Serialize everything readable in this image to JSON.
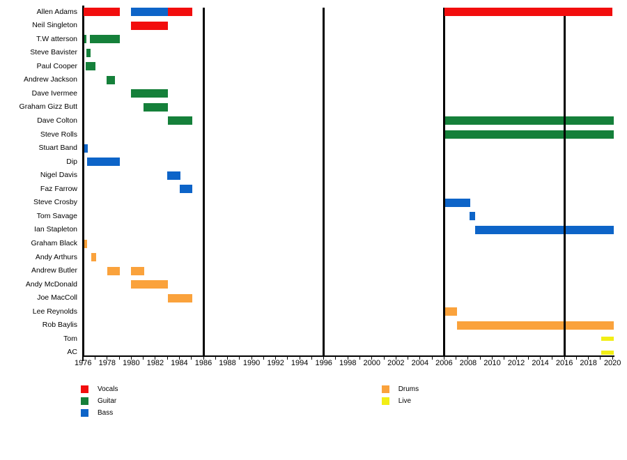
{
  "chart_data": {
    "type": "timeline",
    "x_axis": {
      "start": 1976,
      "end": 2020,
      "tick_every": 1,
      "label_every": 2,
      "tick_labels": [
        "1976",
        "1978",
        "1980",
        "1982",
        "1984",
        "1986",
        "1988",
        "1990",
        "1992",
        "1994",
        "1996",
        "1998",
        "2000",
        "2002",
        "2004",
        "2006",
        "2008",
        "2010",
        "2012",
        "2014",
        "2016",
        "2018",
        "2020"
      ]
    },
    "vertical_lines": [
      1986,
      1996,
      2006,
      2016
    ],
    "roles": [
      {
        "name": "Vocals",
        "color": "#f20d0d"
      },
      {
        "name": "Guitar",
        "color": "#15803a"
      },
      {
        "name": "Bass",
        "color": "#0d64c8"
      },
      {
        "name": "Drums",
        "color": "#faa23c"
      },
      {
        "name": "Live",
        "color": "#f2ee15"
      }
    ],
    "legend": {
      "columns": [
        {
          "items": [
            "Vocals",
            "Guitar",
            "Bass"
          ]
        },
        {
          "items": [
            "Drums",
            "Live"
          ]
        }
      ]
    },
    "members": [
      {
        "name": "Allen Adams",
        "stints": [
          {
            "role": "Vocals",
            "start": 1976.05,
            "end": 1979.05
          },
          {
            "role": "Bass",
            "start": 1980,
            "end": 1983.05
          },
          {
            "role": "Vocals",
            "start": 1983.05,
            "end": 1985.05
          },
          {
            "role": "Vocals",
            "start": 2006.05,
            "end": 2020
          }
        ]
      },
      {
        "name": "Neil Singleton",
        "stints": [
          {
            "role": "Vocals",
            "start": 1980,
            "end": 1983.05
          }
        ]
      },
      {
        "name": "T.W atterson",
        "stints": [
          {
            "role": "Guitar",
            "start": 1976.05,
            "end": 1976.3
          },
          {
            "role": "Guitar",
            "start": 1976.55,
            "end": 1979.05
          }
        ]
      },
      {
        "name": "Steve Bavister",
        "stints": [
          {
            "role": "Guitar",
            "start": 1976.3,
            "end": 1976.6
          }
        ]
      },
      {
        "name": "Paul Cooper",
        "stints": [
          {
            "role": "Guitar",
            "start": 1976.2,
            "end": 1977.05
          }
        ]
      },
      {
        "name": "Andrew Jackson",
        "stints": [
          {
            "role": "Guitar",
            "start": 1977.95,
            "end": 1978.65
          }
        ]
      },
      {
        "name": "Dave Ivermee",
        "stints": [
          {
            "role": "Guitar",
            "start": 1980,
            "end": 1983.05
          }
        ]
      },
      {
        "name": "Graham Gizz Butt",
        "stints": [
          {
            "role": "Guitar",
            "start": 1981,
            "end": 1983.05
          }
        ]
      },
      {
        "name": "Dave Colton",
        "stints": [
          {
            "role": "Guitar",
            "start": 1983.05,
            "end": 1985.05
          },
          {
            "role": "Guitar",
            "start": 2006.05,
            "end": 2020.1
          }
        ]
      },
      {
        "name": "Steve Rolls",
        "stints": [
          {
            "role": "Guitar",
            "start": 2006.05,
            "end": 2020.1
          }
        ]
      },
      {
        "name": "Stuart Band",
        "stints": [
          {
            "role": "Bass",
            "start": 1976.05,
            "end": 1976.4
          }
        ]
      },
      {
        "name": "Dip",
        "stints": [
          {
            "role": "Bass",
            "start": 1976.35,
            "end": 1979.05
          }
        ]
      },
      {
        "name": "Nigel Davis",
        "stints": [
          {
            "role": "Bass",
            "start": 1983,
            "end": 1984.1
          }
        ]
      },
      {
        "name": "Faz Farrow",
        "stints": [
          {
            "role": "Bass",
            "start": 1984.05,
            "end": 1985.05
          }
        ]
      },
      {
        "name": "Steve Crosby",
        "stints": [
          {
            "role": "Bass",
            "start": 2006.05,
            "end": 2008.2
          }
        ]
      },
      {
        "name": "Tom Savage",
        "stints": [
          {
            "role": "Bass",
            "start": 2008.1,
            "end": 2008.6
          }
        ]
      },
      {
        "name": "Ian Stapleton",
        "stints": [
          {
            "role": "Bass",
            "start": 2008.6,
            "end": 2020.1
          }
        ]
      },
      {
        "name": "Graham Black",
        "stints": [
          {
            "role": "Drums",
            "start": 1976.05,
            "end": 1976.35
          }
        ]
      },
      {
        "name": "Andy Arthurs",
        "stints": [
          {
            "role": "Drums",
            "start": 1976.7,
            "end": 1977.1
          }
        ]
      },
      {
        "name": "Andrew Butler",
        "stints": [
          {
            "role": "Drums",
            "start": 1978,
            "end": 1979.05
          },
          {
            "role": "Drums",
            "start": 1980,
            "end": 1981.1
          }
        ]
      },
      {
        "name": "Andy McDonald",
        "stints": [
          {
            "role": "Drums",
            "start": 1980,
            "end": 1983.05
          }
        ]
      },
      {
        "name": "Joe MacColl",
        "stints": [
          {
            "role": "Drums",
            "start": 1983.05,
            "end": 1985.05
          }
        ]
      },
      {
        "name": "Lee Reynolds",
        "stints": [
          {
            "role": "Drums",
            "start": 2006.05,
            "end": 2007.05
          }
        ]
      },
      {
        "name": "Rob Baylis",
        "stints": [
          {
            "role": "Drums",
            "start": 2007.05,
            "end": 2020.1
          }
        ]
      },
      {
        "name": "Tom",
        "stints": [
          {
            "role": "Live",
            "start": 2019.05,
            "end": 2020.1
          }
        ]
      },
      {
        "name": "AC",
        "stints": [
          {
            "role": "Live",
            "start": 2019.05,
            "end": 2020.1
          }
        ]
      }
    ]
  }
}
